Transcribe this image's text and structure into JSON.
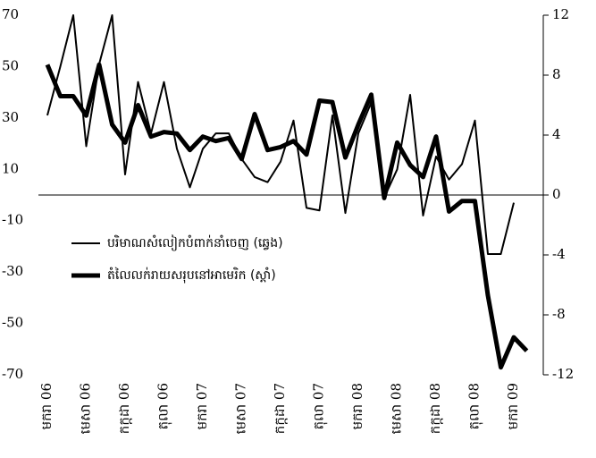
{
  "chart_data": {
    "type": "line",
    "categories": [
      "មករា 06",
      null,
      null,
      "មេសា 06",
      null,
      null,
      "កក្កដា 06",
      null,
      null,
      "តុលា 06",
      null,
      null,
      "មករា 07",
      null,
      null,
      "មេសា 07",
      null,
      null,
      "កក្កដា 07",
      null,
      null,
      "តុលា 07",
      null,
      null,
      "មករា 08",
      null,
      null,
      "មេសា 08",
      null,
      null,
      "កក្កដា 08",
      null,
      null,
      "តុលា 08",
      null,
      null,
      "មករា 09",
      null
    ],
    "series": [
      {
        "name": "បរិមាណសំលៀកបំពាក់នាំចេញ (ឆ្វេង)",
        "color": "#000000",
        "width": 2,
        "axis": "y",
        "values": [
          31,
          50,
          70,
          19,
          51,
          70,
          8,
          44,
          24,
          44,
          18,
          3,
          18,
          24,
          24,
          14,
          7,
          5,
          13,
          29,
          -5,
          -6,
          31,
          -7,
          24,
          36,
          -1,
          10,
          39,
          -8,
          15,
          6,
          12,
          29,
          -23,
          -23,
          -3,
          null
        ]
      },
      {
        "name": "តំលៃលក់រាយសរុបនៅអាមេរិក (ស្តាំ)",
        "color": "#000000",
        "width": 5,
        "axis": "y2",
        "values": [
          8.7,
          6.6,
          6.6,
          5.3,
          8.7,
          4.7,
          3.5,
          6.0,
          3.9,
          4.2,
          4.1,
          3.0,
          3.9,
          3.6,
          3.8,
          2.4,
          5.4,
          3.0,
          3.2,
          3.6,
          2.7,
          6.3,
          6.2,
          2.5,
          4.7,
          6.7,
          -0.2,
          3.5,
          2.0,
          1.2,
          3.9,
          -1.1,
          -0.4,
          -0.4,
          -6.7,
          -11.5,
          -9.5,
          -10.4
        ]
      }
    ],
    "ylim": [
      -70,
      70
    ],
    "yticks": [
      -70,
      -50,
      -30,
      -10,
      10,
      30,
      50,
      70
    ],
    "y2lim": [
      -12,
      12
    ],
    "y2ticks": [
      -12,
      -8,
      -4,
      0,
      4,
      8,
      12
    ]
  }
}
